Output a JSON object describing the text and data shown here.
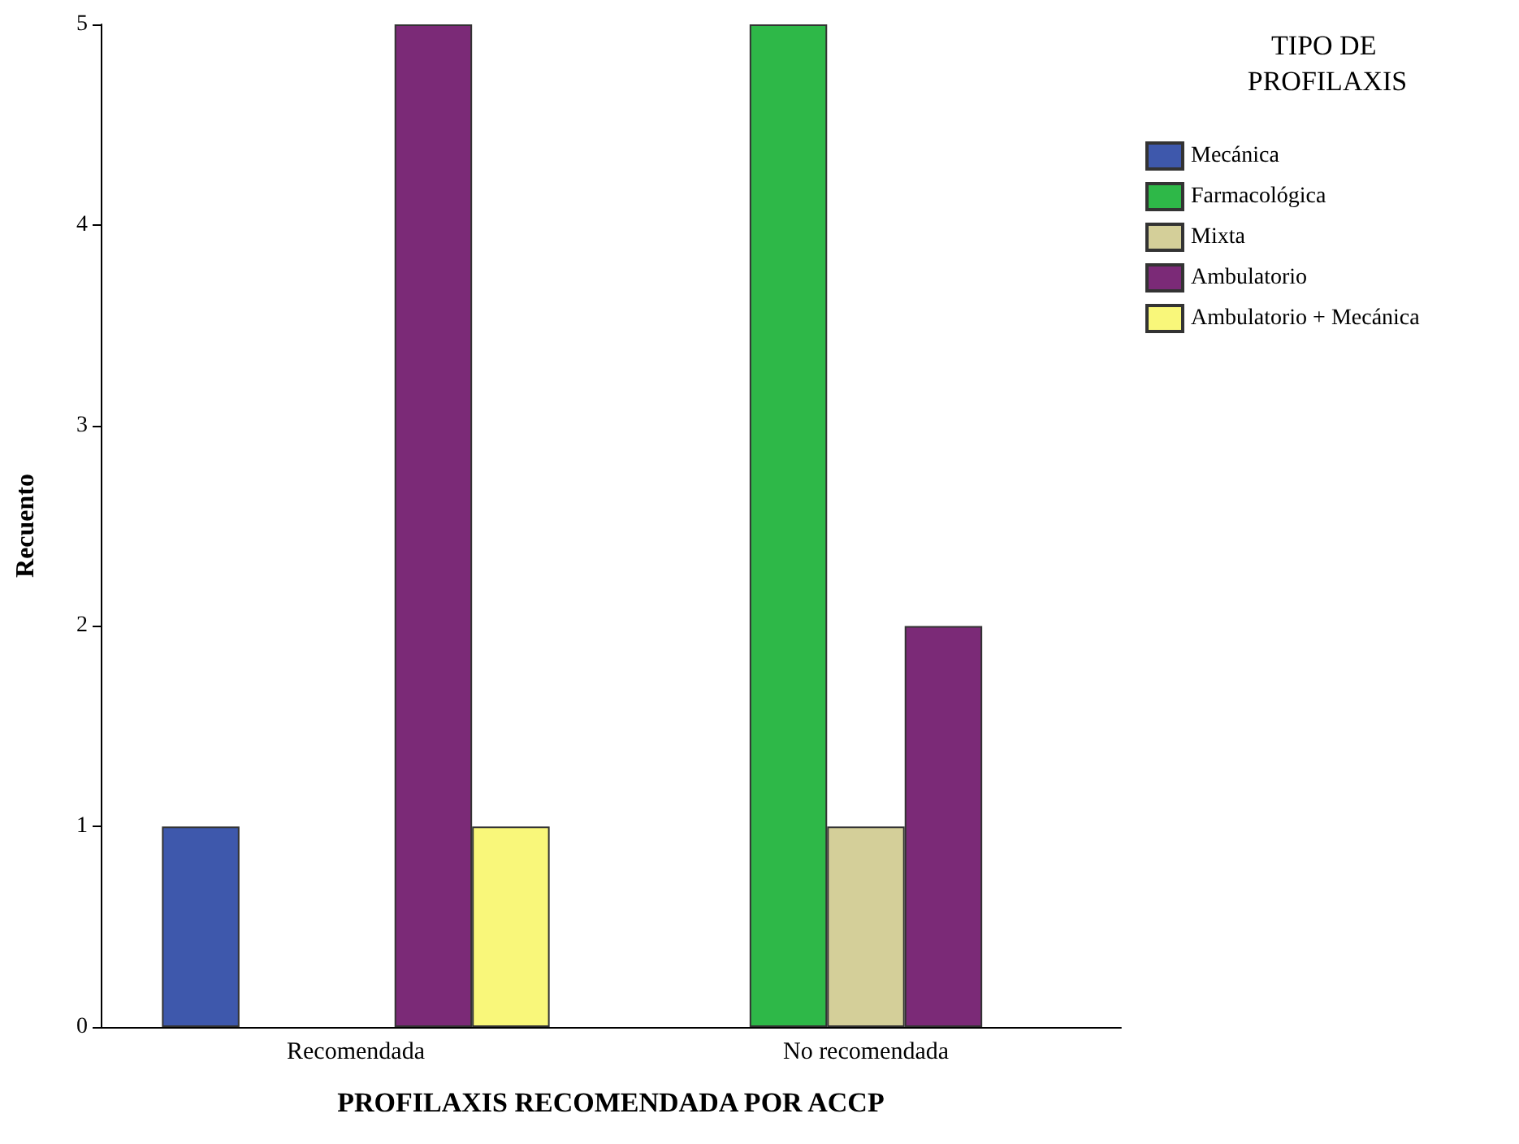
{
  "chart_data": {
    "type": "bar",
    "xlabel": "PROFILAXIS RECOMENDADA POR ACCP",
    "ylabel": "Recuento",
    "legend_title": "TIPO DE PROFILAXIS",
    "categories": [
      "Recomendada",
      "No recomendada"
    ],
    "series": [
      {
        "name": "Mecánica",
        "color": "#3e58ac",
        "values": [
          1,
          null
        ]
      },
      {
        "name": "Farmacológica",
        "color": "#2eb848",
        "values": [
          null,
          5
        ]
      },
      {
        "name": "Mixta",
        "color": "#d4cf99",
        "values": [
          null,
          1
        ]
      },
      {
        "name": "Ambulatorio",
        "color": "#7b2a77",
        "values": [
          5,
          2
        ]
      },
      {
        "name": "Ambulatorio + Mecánica",
        "color": "#f9f77a",
        "values": [
          1,
          null
        ]
      }
    ],
    "ylim": [
      0,
      5
    ],
    "yticks": [
      0,
      1,
      2,
      3,
      4,
      5
    ],
    "grid": false,
    "legend": "top right"
  }
}
